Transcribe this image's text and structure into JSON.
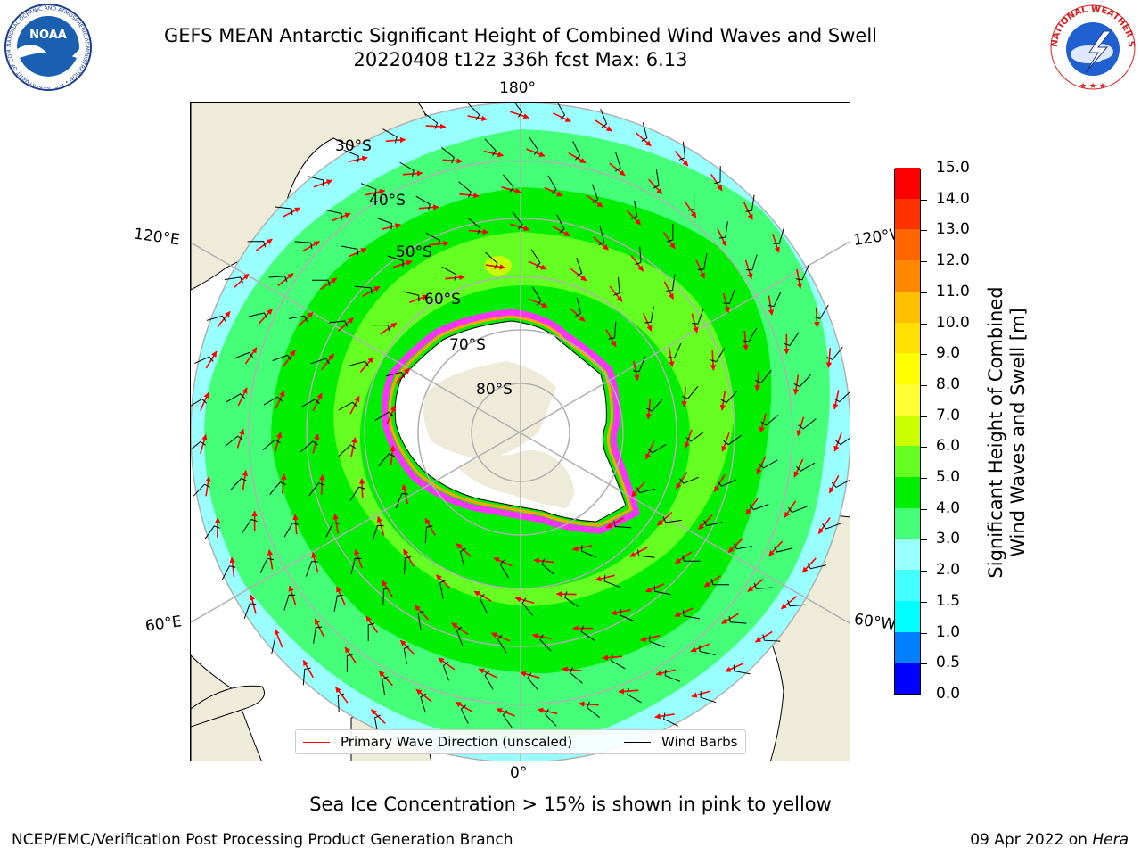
{
  "title": {
    "line1": "GEFS MEAN Antarctic Significant Height of Combined Wind Waves and Swell",
    "line2": "20220408 t12z 336h fcst   Max: 6.13"
  },
  "map": {
    "projection": "south-polar-stereographic",
    "longitude_labels": {
      "top": "180°",
      "upper_left": "120°E",
      "upper_right": "120°W",
      "lower_left": "60°E",
      "lower_right": "60°W",
      "bottom": "0°"
    },
    "latitude_labels": [
      "30°S",
      "40°S",
      "50°S",
      "60°S",
      "70°S",
      "80°S"
    ],
    "field": "Significant Height of Combined Wind Waves and Swell",
    "max_value": 6.13,
    "colors": {
      "land": "#eeebd9",
      "ice_interior": "#ffffff",
      "sea_ice_edge": [
        "#ff33ff",
        "#ffa500",
        "#ffff33"
      ],
      "wave_arrow": "#ff0000",
      "wind_barb": "#000000",
      "graticule": "#b0b0b0"
    },
    "wave_bands": [
      {
        "range": "2.0-3.0",
        "color": "#99ffff"
      },
      {
        "range": "3.0-4.0",
        "color": "#44ff77"
      },
      {
        "range": "4.0-5.0",
        "color": "#00ee00"
      },
      {
        "range": "5.0-6.0",
        "color": "#66ff22"
      },
      {
        "range": "6.0-7.0",
        "color": "#ccff00"
      }
    ]
  },
  "legend": {
    "items": [
      {
        "label": "Primary Wave Direction (unscaled)",
        "color": "#ff0000"
      },
      {
        "label": "Wind Barbs",
        "color": "#000000"
      }
    ]
  },
  "colorbar": {
    "label_line1": "Significant Height of Combined",
    "label_line2": "Wind Waves and Swell [m]",
    "ticks": [
      "0.0",
      "0.5",
      "1.0",
      "1.5",
      "2.0",
      "3.0",
      "4.0",
      "5.0",
      "6.0",
      "7.0",
      "8.0",
      "9.0",
      "10.0",
      "11.0",
      "12.0",
      "13.0",
      "14.0",
      "15.0"
    ],
    "colors": [
      "#0000ff",
      "#0080ff",
      "#00ffff",
      "#44ffff",
      "#99ffff",
      "#44ff77",
      "#00ee00",
      "#66ff22",
      "#ccff00",
      "#ffff33",
      "#ffff00",
      "#ffe000",
      "#ffc000",
      "#ff8800",
      "#ff6600",
      "#ff3300",
      "#ff0000"
    ]
  },
  "caption": "Sea Ice Concentration > 15% is shown in pink to yellow",
  "footer": {
    "left": "NCEP/EMC/Verification Post Processing Product Generation Branch",
    "date": "09 Apr 2022 on",
    "machine": "Hera"
  },
  "logos": {
    "left": "NOAA",
    "left_ring": "NATIONAL OCEANIC AND ATMOSPHERIC ADMINISTRATION • U.S. DEPARTMENT OF COMMERCE",
    "right_ring": "NATIONAL WEATHER SERVICE"
  }
}
